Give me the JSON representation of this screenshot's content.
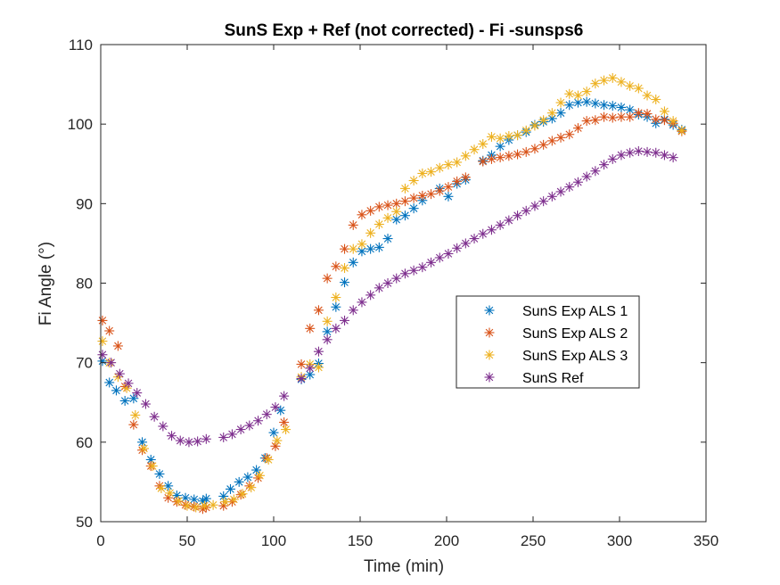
{
  "chart_data": {
    "type": "scatter",
    "title": "SunS Exp + Ref  (not corrected) - Fi -sunsps6",
    "xlabel": "Time (min)",
    "ylabel": "Fi Angle (°)",
    "xlim": [
      0,
      350
    ],
    "ylim": [
      50,
      110
    ],
    "xticks": [
      "0",
      "50",
      "100",
      "150",
      "200",
      "250",
      "300",
      "350"
    ],
    "yticks": [
      "50",
      "60",
      "70",
      "80",
      "90",
      "100",
      "110"
    ],
    "grid": false,
    "legend_position": "center-right",
    "marker": "asterisk",
    "series": [
      {
        "name": "SunS Exp ALS 1",
        "color": "#0072BD",
        "x": [
          1,
          5,
          9,
          14,
          19,
          24,
          29,
          34,
          39,
          44,
          49,
          54,
          59,
          61,
          71,
          75,
          80,
          85,
          90,
          95,
          100,
          104,
          116,
          121,
          126,
          131,
          136,
          141,
          146,
          151,
          156,
          161,
          166,
          171,
          176,
          181,
          186,
          196,
          201,
          206,
          211,
          221,
          226,
          231,
          236,
          241,
          246,
          251,
          256,
          261,
          266,
          271,
          276,
          281,
          286,
          291,
          296,
          301,
          306,
          311,
          316,
          321,
          326,
          331,
          336
        ],
        "y": [
          70.2,
          67.5,
          66.5,
          65.2,
          65.5,
          60.0,
          57.8,
          56.0,
          54.5,
          53.3,
          53.0,
          52.8,
          52.6,
          52.9,
          53.2,
          54.1,
          55.0,
          55.6,
          56.5,
          58.0,
          61.2,
          64.0,
          67.9,
          68.5,
          69.9,
          73.9,
          77.0,
          80.1,
          82.6,
          84.0,
          84.3,
          84.5,
          85.6,
          88.0,
          88.5,
          89.4,
          90.4,
          91.9,
          90.9,
          92.5,
          93.0,
          95.4,
          96.1,
          97.2,
          98.0,
          98.6,
          99.0,
          99.9,
          100.3,
          100.7,
          101.4,
          102.4,
          102.7,
          102.8,
          102.6,
          102.4,
          102.3,
          102.1,
          101.8,
          101.2,
          100.9,
          100.1,
          100.6,
          99.9,
          99.3
        ]
      },
      {
        "name": "SunS Exp ALS 2",
        "color": "#D95319",
        "x": [
          1,
          5,
          10,
          14,
          19,
          24,
          29,
          34,
          39,
          44,
          49,
          54,
          59,
          61,
          71,
          76,
          81,
          86,
          91,
          96,
          101,
          106,
          116,
          121,
          126,
          131,
          136,
          141,
          146,
          151,
          156,
          161,
          166,
          171,
          176,
          181,
          186,
          191,
          196,
          201,
          206,
          211,
          221,
          226,
          231,
          236,
          241,
          246,
          251,
          256,
          261,
          266,
          271,
          276,
          281,
          286,
          291,
          296,
          301,
          306,
          311,
          316,
          321,
          326,
          331,
          336
        ],
        "y": [
          75.3,
          74.0,
          72.1,
          67.0,
          62.2,
          59.0,
          57.0,
          54.5,
          53.0,
          52.5,
          52.1,
          51.9,
          51.6,
          51.8,
          52.0,
          52.5,
          53.4,
          54.5,
          55.5,
          58.0,
          59.5,
          62.5,
          69.8,
          74.3,
          76.6,
          80.6,
          82.1,
          84.3,
          87.3,
          88.6,
          89.1,
          89.6,
          89.8,
          90.0,
          90.3,
          90.7,
          91.0,
          91.2,
          91.6,
          92.1,
          92.8,
          93.3,
          95.3,
          95.6,
          95.8,
          96.0,
          96.2,
          96.5,
          96.9,
          97.4,
          97.9,
          98.3,
          98.7,
          99.5,
          100.4,
          100.5,
          100.9,
          100.8,
          100.9,
          100.9,
          101.4,
          101.3,
          100.6,
          100.5,
          100.1,
          99.1
        ]
      },
      {
        "name": "SunS Exp ALS 3",
        "color": "#EDB120",
        "x": [
          1,
          5,
          10,
          15,
          20,
          25,
          30,
          35,
          40,
          45,
          50,
          55,
          60,
          65,
          72,
          77,
          82,
          87,
          92,
          97,
          102,
          107,
          116,
          121,
          126,
          131,
          136,
          141,
          146,
          151,
          156,
          161,
          166,
          171,
          176,
          181,
          186,
          191,
          196,
          201,
          206,
          211,
          216,
          221,
          226,
          231,
          236,
          241,
          246,
          251,
          256,
          261,
          266,
          271,
          276,
          281,
          286,
          291,
          296,
          301,
          306,
          311,
          316,
          321,
          326,
          331,
          336
        ],
        "y": [
          72.7,
          70.0,
          68.2,
          66.8,
          63.4,
          59.2,
          57.0,
          54.2,
          53.6,
          52.6,
          52.0,
          51.8,
          52.0,
          52.1,
          52.5,
          52.8,
          53.5,
          54.3,
          55.8,
          57.8,
          60.2,
          61.6,
          68.2,
          69.8,
          69.4,
          75.2,
          78.2,
          81.9,
          84.3,
          84.9,
          86.3,
          87.4,
          88.2,
          89.0,
          91.9,
          92.9,
          93.8,
          94.0,
          94.5,
          94.9,
          95.2,
          96.0,
          96.8,
          97.5,
          98.4,
          98.2,
          98.5,
          98.6,
          99.2,
          99.8,
          100.5,
          101.4,
          102.7,
          103.8,
          103.6,
          104.1,
          105.1,
          105.5,
          105.8,
          105.3,
          104.8,
          104.5,
          103.6,
          103.1,
          101.6,
          100.4,
          99.2
        ]
      },
      {
        "name": "SunS Ref",
        "color": "#7E2F8E",
        "x": [
          1,
          6,
          11,
          16,
          21,
          26,
          31,
          36,
          41,
          46,
          51,
          56,
          61,
          71,
          76,
          81,
          86,
          91,
          96,
          101,
          106,
          116,
          121,
          126,
          131,
          136,
          141,
          146,
          151,
          156,
          161,
          166,
          171,
          176,
          181,
          186,
          191,
          196,
          201,
          206,
          211,
          216,
          221,
          226,
          231,
          236,
          241,
          246,
          251,
          256,
          261,
          266,
          271,
          276,
          281,
          286,
          291,
          296,
          301,
          306,
          311,
          316,
          321,
          326,
          331
        ],
        "y": [
          71.0,
          70.0,
          68.6,
          67.4,
          66.2,
          64.8,
          63.2,
          62.0,
          60.8,
          60.2,
          60.0,
          60.1,
          60.4,
          60.6,
          61.0,
          61.6,
          62.1,
          62.7,
          63.5,
          64.4,
          65.8,
          68.0,
          69.3,
          71.4,
          72.9,
          74.3,
          75.3,
          76.6,
          77.6,
          78.5,
          79.4,
          80.0,
          80.6,
          81.2,
          81.6,
          82.0,
          82.6,
          83.2,
          83.7,
          84.4,
          85.0,
          85.6,
          86.2,
          86.7,
          87.3,
          87.9,
          88.5,
          89.1,
          89.7,
          90.3,
          90.9,
          91.5,
          92.1,
          92.7,
          93.4,
          94.1,
          94.9,
          95.6,
          96.1,
          96.4,
          96.6,
          96.5,
          96.4,
          96.1,
          95.8
        ]
      }
    ]
  }
}
